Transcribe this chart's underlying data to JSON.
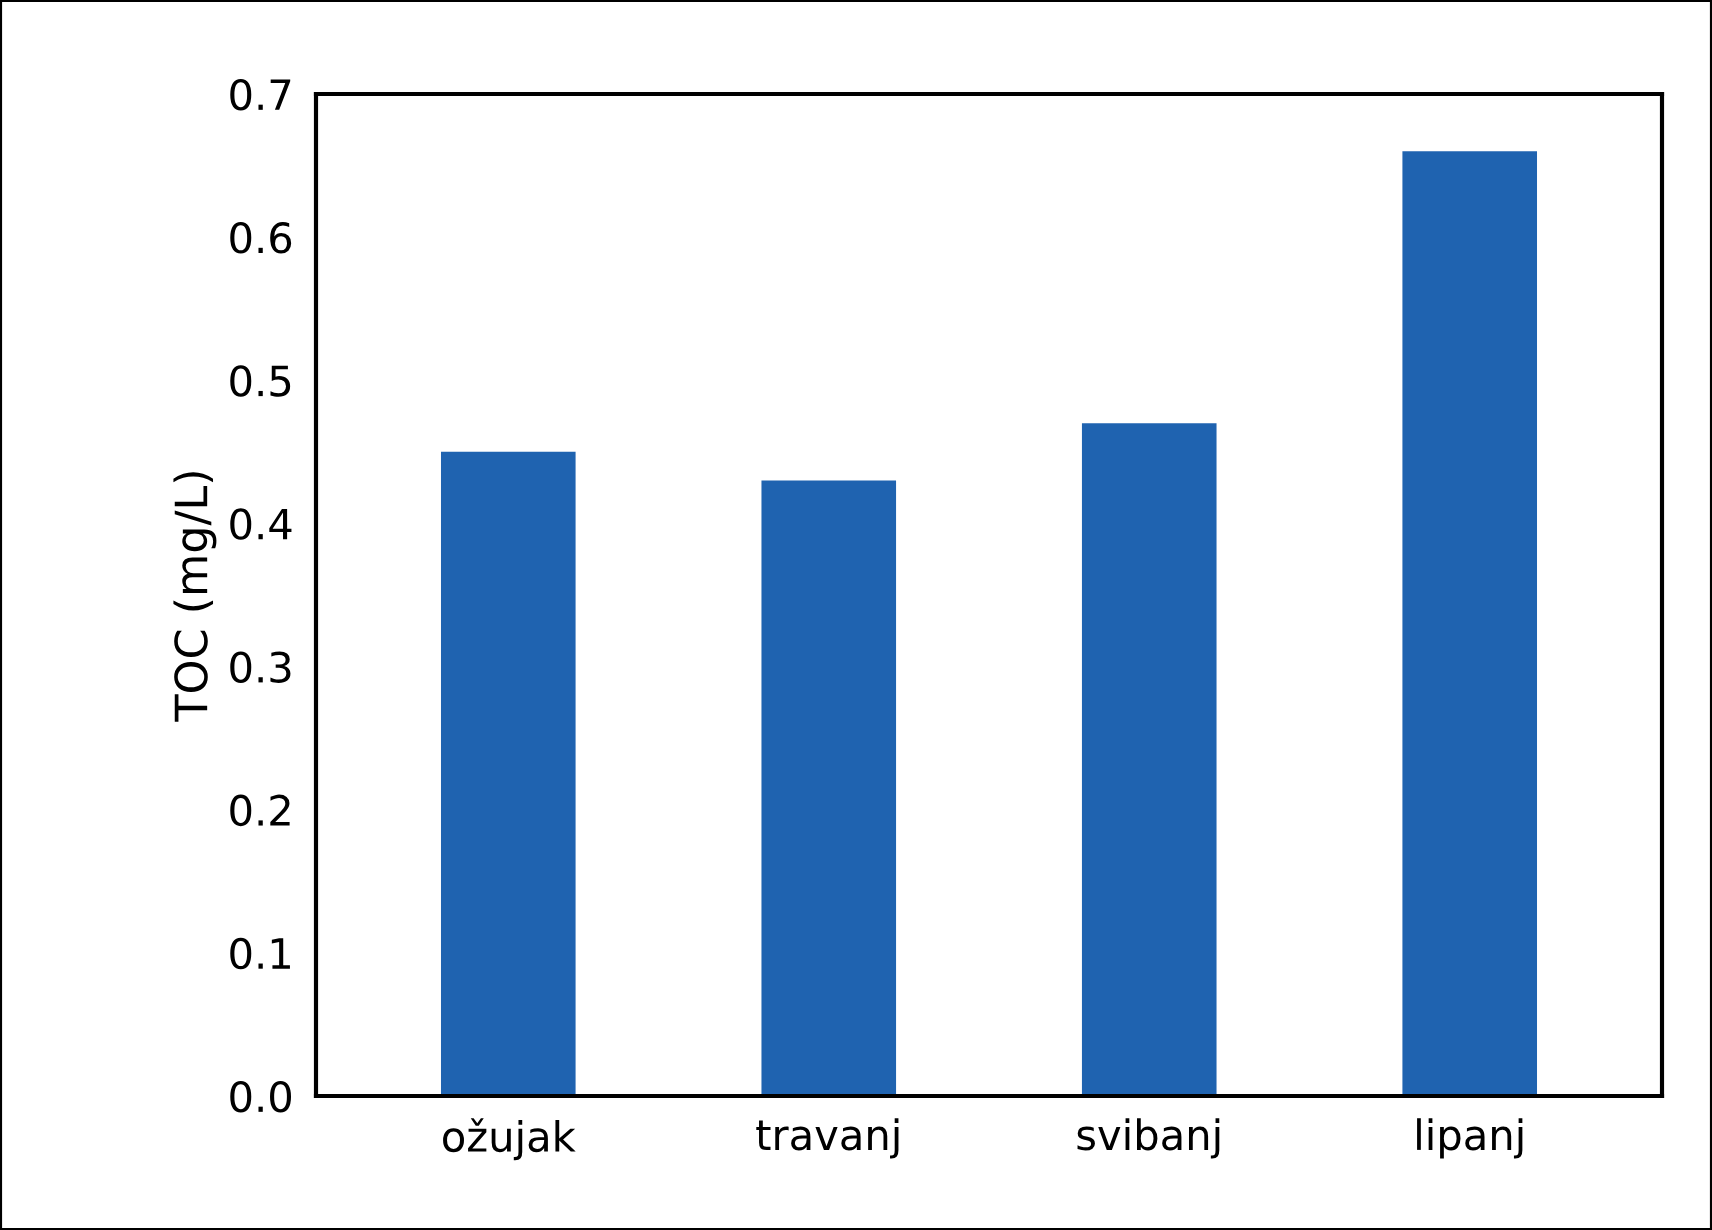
{
  "chart_data": {
    "type": "bar",
    "ylabel": "TOC (mg/L)",
    "categories": [
      "ožujak",
      "travanj",
      "svibanj",
      "lipanj"
    ],
    "values": [
      0.45,
      0.43,
      0.47,
      0.66
    ],
    "color": "#1f63b0",
    "ylim": [
      0,
      0.7
    ],
    "yticks": [
      {
        "value": 0,
        "label": "0.0"
      },
      0.1,
      0.2,
      0.3,
      0.4,
      0.5,
      0.6,
      0.7
    ],
    "grid": false
  }
}
